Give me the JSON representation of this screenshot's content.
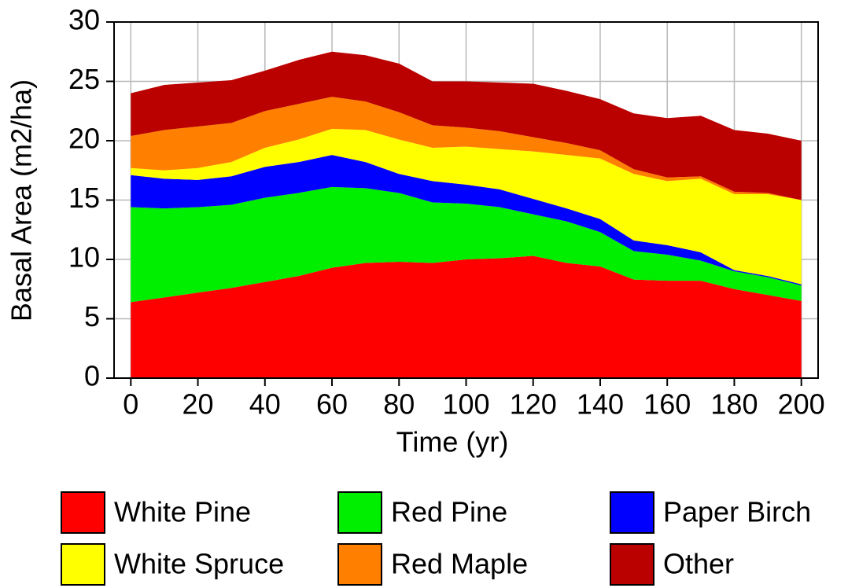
{
  "chart_data": {
    "type": "stacked_area",
    "xlabel": "Time (yr)",
    "ylabel": "Basal Area (m2/ha)",
    "x": [
      0,
      10,
      20,
      30,
      40,
      50,
      60,
      70,
      80,
      90,
      100,
      110,
      120,
      130,
      140,
      150,
      160,
      170,
      180,
      190,
      200
    ],
    "series": [
      {
        "name": "White Pine",
        "color": "#ff0000",
        "values": [
          6.4,
          6.8,
          7.2,
          7.6,
          8.1,
          8.6,
          9.3,
          9.7,
          9.8,
          9.7,
          10.0,
          10.1,
          10.3,
          9.7,
          9.4,
          8.3,
          8.2,
          8.2,
          7.5,
          7.0,
          6.5
        ]
      },
      {
        "name": "Red Pine",
        "color": "#00ee00",
        "values": [
          8.0,
          7.5,
          7.2,
          7.0,
          7.1,
          7.0,
          6.8,
          6.3,
          5.8,
          5.1,
          4.7,
          4.3,
          3.5,
          3.5,
          2.9,
          2.4,
          2.2,
          1.7,
          1.5,
          1.5,
          1.3
        ]
      },
      {
        "name": "Paper Birch",
        "color": "#0000ff",
        "values": [
          2.7,
          2.5,
          2.3,
          2.4,
          2.6,
          2.6,
          2.7,
          2.2,
          1.6,
          1.8,
          1.6,
          1.5,
          1.3,
          1.1,
          1.1,
          0.9,
          0.8,
          0.7,
          0.1,
          0.1,
          0.1
        ]
      },
      {
        "name": "White Spruce",
        "color": "#ffff00",
        "values": [
          0.6,
          0.7,
          1.0,
          1.2,
          1.6,
          1.9,
          2.2,
          2.7,
          2.9,
          2.8,
          3.2,
          3.4,
          4.0,
          4.5,
          5.1,
          5.6,
          5.4,
          6.2,
          6.4,
          6.9,
          7.1
        ]
      },
      {
        "name": "Red Maple",
        "color": "#ff7f00",
        "values": [
          2.7,
          3.4,
          3.5,
          3.3,
          3.1,
          3.0,
          2.7,
          2.4,
          2.3,
          1.9,
          1.6,
          1.5,
          1.2,
          1.0,
          0.7,
          0.4,
          0.3,
          0.2,
          0.2,
          0.1,
          0.0
        ]
      },
      {
        "name": "Other",
        "color": "#bb0000",
        "values": [
          3.6,
          3.8,
          3.7,
          3.6,
          3.4,
          3.7,
          3.8,
          3.9,
          4.1,
          3.7,
          3.9,
          4.1,
          4.5,
          4.4,
          4.3,
          4.7,
          5.0,
          5.1,
          5.2,
          5.0,
          5.0
        ]
      }
    ],
    "xlim": [
      -5,
      205
    ],
    "xticks": [
      0,
      20,
      40,
      60,
      80,
      100,
      120,
      140,
      160,
      180,
      200
    ],
    "ylim": [
      0,
      30
    ],
    "yticks": [
      0,
      5,
      10,
      15,
      20,
      25,
      30
    ],
    "grid": true
  }
}
